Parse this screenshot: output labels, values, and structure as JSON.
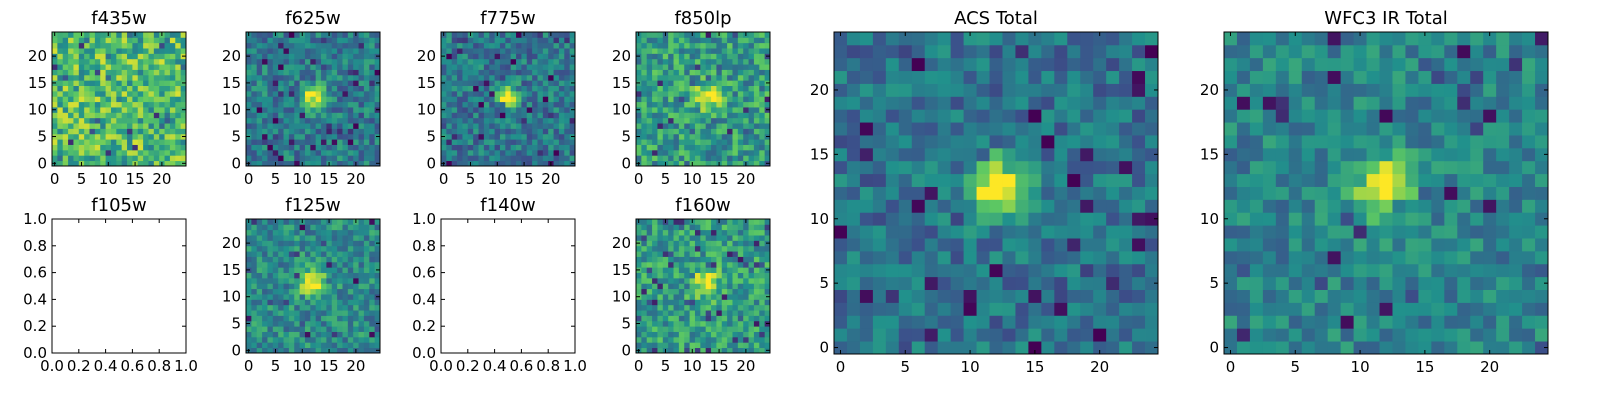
{
  "figure": {
    "background": "#ffffff"
  },
  "colormap": {
    "name": "viridis",
    "stops": [
      "#440154",
      "#3b528b",
      "#21918c",
      "#5ec962",
      "#fde725"
    ]
  },
  "chart_data": [
    {
      "id": "f435w",
      "type": "heatmap",
      "title": "f435w",
      "xlim": [
        -0.5,
        24.5
      ],
      "ylim": [
        -0.5,
        24.5
      ],
      "xticks": [
        0,
        5,
        10,
        15,
        20
      ],
      "yticks": [
        0,
        5,
        10,
        15,
        20
      ],
      "xtick_labels": [
        "0",
        "5",
        "10",
        "15",
        "20"
      ],
      "ytick_labels": [
        "0",
        "5",
        "10",
        "15",
        "20"
      ],
      "grid_size": 25,
      "source": {
        "center": [
          12,
          12
        ],
        "sigma": 1.6,
        "peak": 0.0
      },
      "noise": {
        "base": 0.68,
        "amp": 0.26,
        "seed": 11
      }
    },
    {
      "id": "f625w",
      "type": "heatmap",
      "title": "f625w",
      "xlim": [
        -0.5,
        24.5
      ],
      "ylim": [
        -0.5,
        24.5
      ],
      "xticks": [
        0,
        5,
        10,
        15,
        20
      ],
      "yticks": [
        0,
        5,
        10,
        15,
        20
      ],
      "xtick_labels": [
        "0",
        "5",
        "10",
        "15",
        "20"
      ],
      "ytick_labels": [
        "0",
        "5",
        "10",
        "15",
        "20"
      ],
      "grid_size": 25,
      "source": {
        "center": [
          12,
          12.5
        ],
        "sigma": 1.4,
        "peak": 0.75
      },
      "noise": {
        "base": 0.42,
        "amp": 0.18,
        "seed": 23
      }
    },
    {
      "id": "f775w",
      "type": "heatmap",
      "title": "f775w",
      "xlim": [
        -0.5,
        24.5
      ],
      "ylim": [
        -0.5,
        24.5
      ],
      "xticks": [
        0,
        5,
        10,
        15,
        20
      ],
      "yticks": [
        0,
        5,
        10,
        15,
        20
      ],
      "xtick_labels": [
        "0",
        "5",
        "10",
        "15",
        "20"
      ],
      "ytick_labels": [
        "0",
        "5",
        "10",
        "15",
        "20"
      ],
      "grid_size": 25,
      "source": {
        "center": [
          12,
          12.5
        ],
        "sigma": 1.3,
        "peak": 0.75
      },
      "noise": {
        "base": 0.4,
        "amp": 0.18,
        "seed": 37
      }
    },
    {
      "id": "f850lp",
      "type": "heatmap",
      "title": "f850lp",
      "xlim": [
        -0.5,
        24.5
      ],
      "ylim": [
        -0.5,
        24.5
      ],
      "xticks": [
        0,
        5,
        10,
        15,
        20
      ],
      "yticks": [
        0,
        5,
        10,
        15,
        20
      ],
      "xtick_labels": [
        "0",
        "5",
        "10",
        "15",
        "20"
      ],
      "ytick_labels": [
        "0",
        "5",
        "10",
        "15",
        "20"
      ],
      "grid_size": 25,
      "source": {
        "center": [
          13,
          12.5
        ],
        "sigma": 1.6,
        "peak": 0.5
      },
      "noise": {
        "base": 0.55,
        "amp": 0.22,
        "seed": 41
      }
    },
    {
      "id": "f105w",
      "type": "empty",
      "title": "f105w",
      "xlim": [
        0,
        1
      ],
      "ylim": [
        0,
        1
      ],
      "xticks": [
        0,
        0.2,
        0.4,
        0.6,
        0.8,
        1.0
      ],
      "yticks": [
        0,
        0.2,
        0.4,
        0.6,
        0.8,
        1.0
      ],
      "xtick_labels": [
        "0.0",
        "0.2",
        "0.4",
        "0.6",
        "0.8",
        "1.0"
      ],
      "ytick_labels": [
        "0.0",
        "0.2",
        "0.4",
        "0.6",
        "0.8",
        "1.0"
      ]
    },
    {
      "id": "f125w",
      "type": "heatmap",
      "title": "f125w",
      "xlim": [
        -0.5,
        24.5
      ],
      "ylim": [
        -0.5,
        24.5
      ],
      "xticks": [
        0,
        5,
        10,
        15,
        20
      ],
      "yticks": [
        0,
        5,
        10,
        15,
        20
      ],
      "xtick_labels": [
        "0",
        "5",
        "10",
        "15",
        "20"
      ],
      "ytick_labels": [
        "0",
        "5",
        "10",
        "15",
        "20"
      ],
      "grid_size": 25,
      "source": {
        "center": [
          12,
          12.5
        ],
        "sigma": 1.7,
        "peak": 0.6
      },
      "noise": {
        "base": 0.48,
        "amp": 0.18,
        "seed": 53
      }
    },
    {
      "id": "f140w",
      "type": "empty",
      "title": "f140w",
      "xlim": [
        0,
        1
      ],
      "ylim": [
        0,
        1
      ],
      "xticks": [
        0,
        0.2,
        0.4,
        0.6,
        0.8,
        1.0
      ],
      "yticks": [
        0,
        0.2,
        0.4,
        0.6,
        0.8,
        1.0
      ],
      "xtick_labels": [
        "0.0",
        "0.2",
        "0.4",
        "0.6",
        "0.8",
        "1.0"
      ],
      "ytick_labels": [
        "0.0",
        "0.2",
        "0.4",
        "0.6",
        "0.8",
        "1.0"
      ]
    },
    {
      "id": "f160w",
      "type": "heatmap",
      "title": "f160w",
      "xlim": [
        -0.5,
        24.5
      ],
      "ylim": [
        -0.5,
        24.5
      ],
      "xticks": [
        0,
        5,
        10,
        15,
        20
      ],
      "yticks": [
        0,
        5,
        10,
        15,
        20
      ],
      "xtick_labels": [
        "0",
        "5",
        "10",
        "15",
        "20"
      ],
      "ytick_labels": [
        "0",
        "5",
        "10",
        "15",
        "20"
      ],
      "grid_size": 25,
      "source": {
        "center": [
          12.5,
          12.5
        ],
        "sigma": 1.7,
        "peak": 0.45
      },
      "noise": {
        "base": 0.56,
        "amp": 0.2,
        "seed": 67
      }
    },
    {
      "id": "acs-total",
      "type": "heatmap",
      "title": "ACS Total",
      "xlim": [
        -0.5,
        24.5
      ],
      "ylim": [
        -0.5,
        24.5
      ],
      "xticks": [
        0,
        5,
        10,
        15,
        20
      ],
      "yticks": [
        0,
        5,
        10,
        15,
        20
      ],
      "xtick_labels": [
        "0",
        "5",
        "10",
        "15",
        "20"
      ],
      "ytick_labels": [
        "0",
        "5",
        "10",
        "15",
        "20"
      ],
      "grid_size": 25,
      "source": {
        "center": [
          12,
          12.5
        ],
        "sigma": 1.5,
        "peak": 0.7
      },
      "noise": {
        "base": 0.38,
        "amp": 0.16,
        "seed": 71
      }
    },
    {
      "id": "wfc3-ir-total",
      "type": "heatmap",
      "title": "WFC3 IR Total",
      "xlim": [
        -0.5,
        24.5
      ],
      "ylim": [
        -0.5,
        24.5
      ],
      "xticks": [
        0,
        5,
        10,
        15,
        20
      ],
      "yticks": [
        0,
        5,
        10,
        15,
        20
      ],
      "xtick_labels": [
        "0",
        "5",
        "10",
        "15",
        "20"
      ],
      "ytick_labels": [
        "0",
        "5",
        "10",
        "15",
        "20"
      ],
      "grid_size": 25,
      "source": {
        "center": [
          12,
          12.5
        ],
        "sigma": 1.6,
        "peak": 0.6
      },
      "noise": {
        "base": 0.45,
        "amp": 0.15,
        "seed": 89
      }
    }
  ]
}
